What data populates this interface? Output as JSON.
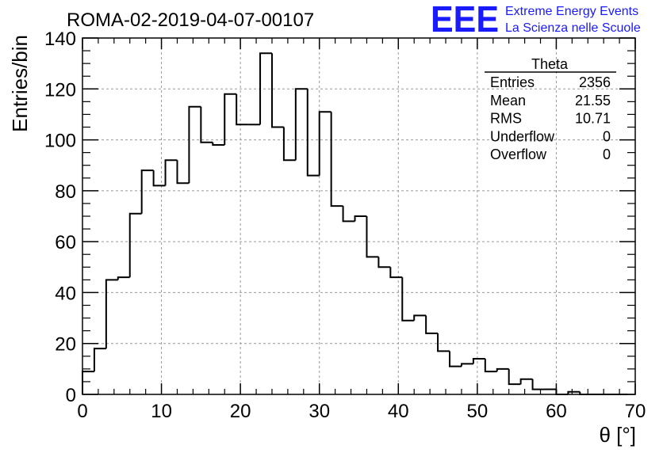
{
  "chart_data": {
    "type": "bar",
    "style": "step-histogram",
    "title": "ROMA-02-2019-04-07-00107",
    "xlabel": "θ [°]",
    "ylabel": "Entries/bin",
    "xlim": [
      0,
      70
    ],
    "ylim": [
      0,
      140
    ],
    "xticks": [
      0,
      10,
      20,
      30,
      40,
      50,
      60,
      70
    ],
    "yticks": [
      0,
      20,
      40,
      60,
      80,
      100,
      120,
      140
    ],
    "grid": true,
    "bin_width": 1.5,
    "bin_start": 0,
    "values": [
      9,
      18,
      45,
      46,
      71,
      88,
      82,
      92,
      83,
      113,
      99,
      98,
      118,
      106,
      106,
      134,
      105,
      92,
      120,
      86,
      111,
      74,
      68,
      70,
      54,
      50,
      46,
      29,
      31,
      24,
      17,
      11,
      12,
      14,
      9,
      10,
      4,
      6,
      2,
      2,
      0,
      1,
      0,
      0,
      0,
      0
    ],
    "stats": {
      "title": "Theta",
      "position": "top-right",
      "rows": [
        {
          "label": "Entries",
          "value": "2356"
        },
        {
          "label": "Mean",
          "value": "21.55"
        },
        {
          "label": "RMS",
          "value": "10.71"
        },
        {
          "label": "Underflow",
          "value": "0"
        },
        {
          "label": "Overflow",
          "value": "0"
        }
      ]
    },
    "line_color": "#000000",
    "grid_color": "#999999"
  },
  "logo": {
    "mark": "EEE",
    "line1": "Extreme Energy Events",
    "line2": "La Scienza nelle Scuole",
    "color": "#1a1aff"
  }
}
